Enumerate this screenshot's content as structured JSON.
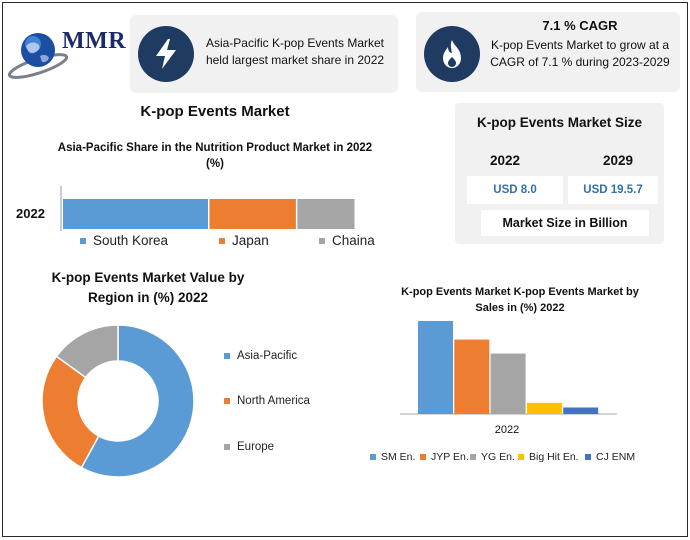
{
  "logo": {
    "text": "MMR",
    "icon": "globe-logo-icon"
  },
  "cards": {
    "share": {
      "icon": "lightning-icon",
      "text": "Asia-Pacific K-pop Events Market held largest market share in 2022"
    },
    "cagr": {
      "icon": "flame-icon",
      "title": "7.1 % CAGR",
      "text": "K-pop Events Market to grow at a CAGR of 7.1 % during 2023-2029"
    }
  },
  "main_title": "K-pop Events Market",
  "market_size": {
    "title": "K-pop Events Market Size",
    "year_start": "2022",
    "year_end": "2029",
    "value_start": "USD 8.0",
    "value_end": "USD 19.5.7",
    "note": "Market Size in Billion"
  },
  "colors": {
    "blue": "#5b9bd5",
    "orange": "#ed7d31",
    "gray": "#a5a5a5",
    "yellow": "#ffc000",
    "navy": "#4472c4",
    "dark": "#1f3b62"
  },
  "chart_data": [
    {
      "type": "bar",
      "orientation": "horizontal-stacked",
      "title": "Asia-Pacific Share in the Nutrition Product Market in 2022 (%)",
      "categories": [
        "2022"
      ],
      "series": [
        {
          "name": "South Korea",
          "values": [
            50
          ]
        },
        {
          "name": "Japan",
          "values": [
            30
          ]
        },
        {
          "name": "Chaina",
          "values": [
            20
          ]
        }
      ],
      "legend": "bottom"
    },
    {
      "type": "pie",
      "style": "donut",
      "title": "K-pop Events Market Value by Region in (%) 2022",
      "labels": [
        "Asia-Pacific",
        "North America",
        "Europe"
      ],
      "values": [
        58,
        27,
        15
      ],
      "legend": "right"
    },
    {
      "type": "bar",
      "title": "K-pop Events Market K-pop Events Market  by Sales in (%) 2022",
      "categories": [
        "2022"
      ],
      "series": [
        {
          "name": "SM En.",
          "values": [
            100
          ]
        },
        {
          "name": "JYP En.",
          "values": [
            80
          ]
        },
        {
          "name": "YG En.",
          "values": [
            65
          ]
        },
        {
          "name": "Big Hit En.",
          "values": [
            12
          ]
        },
        {
          "name": "CJ ENM",
          "values": [
            7
          ]
        }
      ],
      "ylim": [
        0,
        100
      ],
      "legend": "bottom"
    }
  ]
}
